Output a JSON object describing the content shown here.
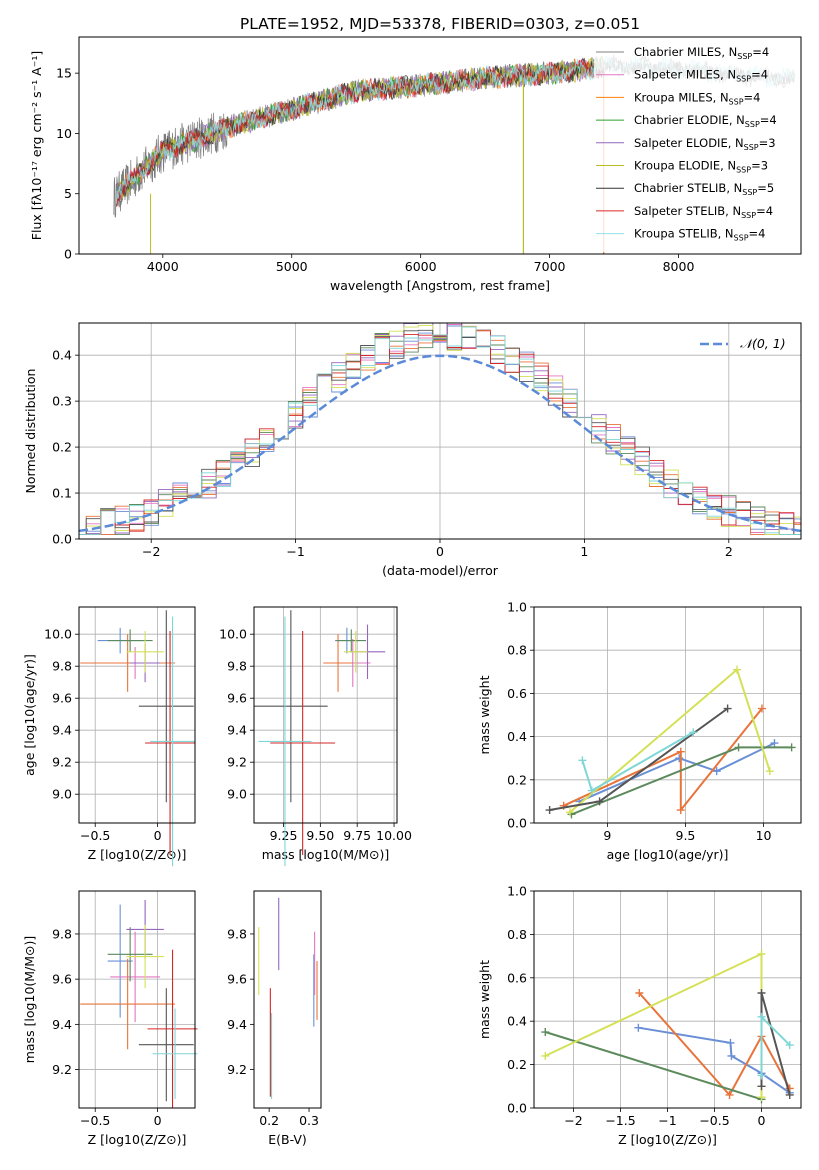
{
  "figure_title": "PLATE=1952, MJD=53378, FIBERID=0303, z=0.051",
  "colors": {
    "Chabrier MILES": "#808080",
    "Salpeter MILES": "#e377c2",
    "Kroupa MILES": "#ff7f0e",
    "Chabrier ELODIE": "#2ca02c",
    "Salpeter ELODIE": "#9467bd",
    "Kroupa ELODIE": "#bcbd22",
    "Chabrier STELIB": "#333333",
    "Salpeter STELIB": "#d62728",
    "Kroupa STELIB": "#8fe0e8",
    "blue": "#6a8fd6",
    "orange": "#e8743b",
    "green": "#5c8a5c",
    "grey": "#555555",
    "lime": "#d4e157",
    "cyan": "#7fd6d6",
    "normal_curve": "#5a8ad8"
  },
  "chart_data": [
    {
      "id": "spectrum",
      "type": "line",
      "title": "PLATE=1952, MJD=53378, FIBERID=0303, z=0.051",
      "xlabel": "wavelength [Angstrom, rest frame]",
      "ylabel": "Flux [fλ10⁻¹⁷ erg cm⁻² s⁻¹ A⁻¹]",
      "xlim": [
        3350,
        8950
      ],
      "ylim": [
        0,
        18
      ],
      "xticks": [
        4000,
        5000,
        6000,
        7000,
        8000
      ],
      "yticks": [
        0,
        5,
        10,
        15
      ],
      "grid": false,
      "legend_position": "upper-right",
      "data_trend": {
        "x": [
          3600,
          3800,
          4000,
          4500,
          5000,
          5500,
          6000,
          6500,
          7000,
          7500,
          8000,
          8500,
          8900
        ],
        "y": [
          4.5,
          6.5,
          8.5,
          10.5,
          12.0,
          13.5,
          14.0,
          14.6,
          15.0,
          15.6,
          15.4,
          14.8,
          14.5
        ]
      },
      "series": [
        {
          "name": "Chabrier MILES, N_SSP=4"
        },
        {
          "name": "Salpeter MILES, N_SSP=4"
        },
        {
          "name": "Kroupa MILES, N_SSP=4"
        },
        {
          "name": "Chabrier ELODIE, N_SSP=4"
        },
        {
          "name": "Salpeter ELODIE, N_SSP=3"
        },
        {
          "name": "Kroupa ELODIE, N_SSP=3"
        },
        {
          "name": "Chabrier STELIB, N_SSP=5"
        },
        {
          "name": "Salpeter STELIB, N_SSP=4"
        },
        {
          "name": "Kroupa STELIB, N_SSP=4"
        }
      ]
    },
    {
      "id": "residuals",
      "type": "histogram",
      "xlabel": "(data-model)/error",
      "ylabel": "Normed distribution",
      "xlim": [
        -2.5,
        2.5
      ],
      "ylim": [
        0,
        0.47
      ],
      "xticks": [
        -2,
        -1,
        0,
        1,
        2
      ],
      "yticks": [
        0.0,
        0.1,
        0.2,
        0.3,
        0.4
      ],
      "grid": true,
      "bin_width": 0.1,
      "legend": "𝒩(0, 1)",
      "legend_position": "upper-right"
    },
    {
      "id": "age_vs_Z",
      "type": "errorbar",
      "xlabel": "Z [log10(Z/Z⊙)]",
      "ylabel": "age  [log10(age/yr)]",
      "xlim": [
        -0.63,
        0.3
      ],
      "ylim": [
        8.82,
        10.17
      ],
      "xticks": [
        -0.5,
        0.0
      ],
      "yticks": [
        9.0,
        9.2,
        9.4,
        9.6,
        9.8,
        10.0
      ],
      "grid": true,
      "points": [
        {
          "x": -0.3,
          "y": 9.96,
          "xe": 0.18,
          "ye": 0.08,
          "c": "blue"
        },
        {
          "x": -0.18,
          "y": 9.82,
          "xe": 0.2,
          "ye": 0.1,
          "c": "pink"
        },
        {
          "x": -0.24,
          "y": 9.82,
          "xe": 0.38,
          "ye": 0.18,
          "c": "orange"
        },
        {
          "x": -0.22,
          "y": 9.96,
          "xe": 0.18,
          "ye": 0.07,
          "c": "green"
        },
        {
          "x": -0.1,
          "y": 9.82,
          "xe": 0.12,
          "ye": 0.12,
          "c": "purple"
        },
        {
          "x": -0.1,
          "y": 9.89,
          "xe": 0.15,
          "ye": 0.13,
          "c": "lime"
        },
        {
          "x": 0.07,
          "y": 9.55,
          "xe": 0.22,
          "ye": 0.6,
          "c": "grey"
        },
        {
          "x": 0.1,
          "y": 9.32,
          "xe": 0.2,
          "ye": 0.7,
          "c": "red"
        },
        {
          "x": 0.12,
          "y": 9.33,
          "xe": 0.18,
          "ye": 0.78,
          "c": "cyan"
        }
      ]
    },
    {
      "id": "age_vs_mass",
      "type": "errorbar",
      "xlabel": "mass [log10(M/M⊙)]",
      "ylabel": "",
      "xlim": [
        9.05,
        10.02
      ],
      "ylim": [
        8.82,
        10.17
      ],
      "xticks": [
        9.25,
        9.5,
        9.75,
        10.0
      ],
      "xticklabels": [
        "9.25",
        "9.50",
        "9.75",
        "10.00"
      ],
      "yticks": [
        9.0,
        9.2,
        9.4,
        9.6,
        9.8,
        10.0
      ],
      "grid": true,
      "points": [
        {
          "x": 9.68,
          "y": 9.96,
          "xe": 0.08,
          "ye": 0.08,
          "c": "blue"
        },
        {
          "x": 9.72,
          "y": 9.82,
          "xe": 0.12,
          "ye": 0.15,
          "c": "pink"
        },
        {
          "x": 9.62,
          "y": 9.82,
          "xe": 0.1,
          "ye": 0.18,
          "c": "orange"
        },
        {
          "x": 9.71,
          "y": 9.96,
          "xe": 0.1,
          "ye": 0.07,
          "c": "green"
        },
        {
          "x": 9.82,
          "y": 9.89,
          "xe": 0.12,
          "ye": 0.17,
          "c": "purple"
        },
        {
          "x": 9.74,
          "y": 9.89,
          "xe": 0.08,
          "ye": 0.13,
          "c": "lime"
        },
        {
          "x": 9.3,
          "y": 9.55,
          "xe": 0.25,
          "ye": 0.6,
          "c": "grey"
        },
        {
          "x": 9.38,
          "y": 9.32,
          "xe": 0.22,
          "ye": 0.7,
          "c": "red"
        },
        {
          "x": 9.26,
          "y": 9.33,
          "xe": 0.18,
          "ye": 0.78,
          "c": "cyan"
        }
      ]
    },
    {
      "id": "mass_weight_vs_age",
      "type": "line",
      "xlabel": "age  [log10(age/yr)]",
      "ylabel": "mass weight",
      "xlim": [
        8.53,
        10.24
      ],
      "ylim": [
        0,
        1.0
      ],
      "xticks": [
        9.0,
        9.5,
        10.0
      ],
      "yticks": [
        0.0,
        0.2,
        0.4,
        0.6,
        0.8,
        1.0
      ],
      "grid": true,
      "series": [
        {
          "c": "blue",
          "x": [
            8.82,
            9.46,
            9.7,
            10.07
          ],
          "y": [
            0.1,
            0.3,
            0.24,
            0.37
          ]
        },
        {
          "c": "orange",
          "x": [
            8.72,
            9.47,
            9.47,
            9.99
          ],
          "y": [
            0.08,
            0.33,
            0.06,
            0.53
          ]
        },
        {
          "c": "green",
          "x": [
            8.77,
            9.84,
            10.18
          ],
          "y": [
            0.04,
            0.35,
            0.35
          ]
        },
        {
          "c": "lime",
          "x": [
            8.76,
            9.83,
            10.04
          ],
          "y": [
            0.05,
            0.71,
            0.24
          ]
        },
        {
          "c": "grey",
          "x": [
            8.63,
            8.95,
            9.77
          ],
          "y": [
            0.06,
            0.1,
            0.53
          ]
        },
        {
          "c": "cyan",
          "x": [
            8.84,
            8.9,
            9.55
          ],
          "y": [
            0.29,
            0.15,
            0.42
          ]
        }
      ]
    },
    {
      "id": "mass_vs_Z",
      "type": "errorbar",
      "xlabel": "Z [log10(Z/Z⊙)]",
      "ylabel": "mass [log10(M/M⊙)]",
      "xlim": [
        -0.63,
        0.3
      ],
      "ylim": [
        9.03,
        9.99
      ],
      "xticks": [
        -0.5,
        0.0
      ],
      "yticks": [
        9.2,
        9.4,
        9.6,
        9.8
      ],
      "grid": true,
      "points": [
        {
          "x": -0.3,
          "y": 9.68,
          "xe": 0.1,
          "ye": 0.25,
          "c": "blue"
        },
        {
          "x": -0.18,
          "y": 9.61,
          "xe": 0.2,
          "ye": 0.2,
          "c": "pink"
        },
        {
          "x": -0.24,
          "y": 9.49,
          "xe": 0.38,
          "ye": 0.2,
          "c": "orange"
        },
        {
          "x": -0.22,
          "y": 9.71,
          "xe": 0.18,
          "ye": 0.12,
          "c": "green"
        },
        {
          "x": -0.1,
          "y": 9.82,
          "xe": 0.15,
          "ye": 0.13,
          "c": "purple"
        },
        {
          "x": -0.1,
          "y": 9.7,
          "xe": 0.15,
          "ye": 0.14,
          "c": "lime"
        },
        {
          "x": 0.07,
          "y": 9.31,
          "xe": 0.22,
          "ye": 0.25,
          "c": "grey"
        },
        {
          "x": 0.12,
          "y": 9.38,
          "xe": 0.2,
          "ye": 0.35,
          "c": "red"
        },
        {
          "x": 0.14,
          "y": 9.27,
          "xe": 0.18,
          "ye": 0.2,
          "c": "cyan"
        }
      ]
    },
    {
      "id": "mass_vs_EBV",
      "type": "errorbar",
      "xlabel": "E(B-V)",
      "ylabel": "",
      "xlim": [
        0.162,
        0.33
      ],
      "ylim": [
        9.03,
        9.99
      ],
      "xticks": [
        0.2,
        0.3
      ],
      "yticks": [
        9.2,
        9.4,
        9.6,
        9.8
      ],
      "grid": false,
      "points": [
        {
          "x": 0.174,
          "y": 9.68,
          "ye": 0.15,
          "c": "lime"
        },
        {
          "x": 0.203,
          "y": 9.32,
          "ye": 0.24,
          "c": "red"
        },
        {
          "x": 0.206,
          "y": 9.26,
          "ye": 0.19,
          "c": "cyan"
        },
        {
          "x": 0.224,
          "y": 9.8,
          "ye": 0.16,
          "c": "purple"
        },
        {
          "x": 0.312,
          "y": 9.55,
          "ye": 0.16,
          "c": "blue"
        },
        {
          "x": 0.314,
          "y": 9.67,
          "ye": 0.14,
          "c": "pink"
        },
        {
          "x": 0.32,
          "y": 9.55,
          "ye": 0.13,
          "c": "orange"
        }
      ]
    },
    {
      "id": "mass_weight_vs_Z",
      "type": "line",
      "xlabel": "Z [log10(Z/Z⊙)]",
      "ylabel": "mass weight",
      "xlim": [
        -2.42,
        0.42
      ],
      "ylim": [
        0,
        1.0
      ],
      "xticks": [
        -2.0,
        -1.5,
        -1.0,
        -0.5,
        0.0
      ],
      "yticks": [
        0.0,
        0.2,
        0.4,
        0.6,
        0.8,
        1.0
      ],
      "grid": true,
      "series": [
        {
          "c": "blue",
          "x": [
            -1.31,
            -0.33,
            -0.32,
            0.0,
            0.3
          ],
          "y": [
            0.37,
            0.3,
            0.24,
            0.16,
            0.07
          ]
        },
        {
          "c": "orange",
          "x": [
            -1.3,
            -0.34,
            0.0,
            0.3
          ],
          "y": [
            0.53,
            0.06,
            0.33,
            0.09
          ]
        },
        {
          "c": "green",
          "x": [
            -2.3,
            0.0
          ],
          "y": [
            0.35,
            0.04
          ]
        },
        {
          "c": "lime",
          "x": [
            -2.3,
            0.0,
            0.0
          ],
          "y": [
            0.24,
            0.71,
            0.05
          ]
        },
        {
          "c": "grey",
          "x": [
            0.0,
            0.0,
            0.3
          ],
          "y": [
            0.1,
            0.53,
            0.06
          ]
        },
        {
          "c": "cyan",
          "x": [
            0.0,
            0.0,
            0.3
          ],
          "y": [
            0.15,
            0.42,
            0.29
          ]
        }
      ]
    }
  ]
}
